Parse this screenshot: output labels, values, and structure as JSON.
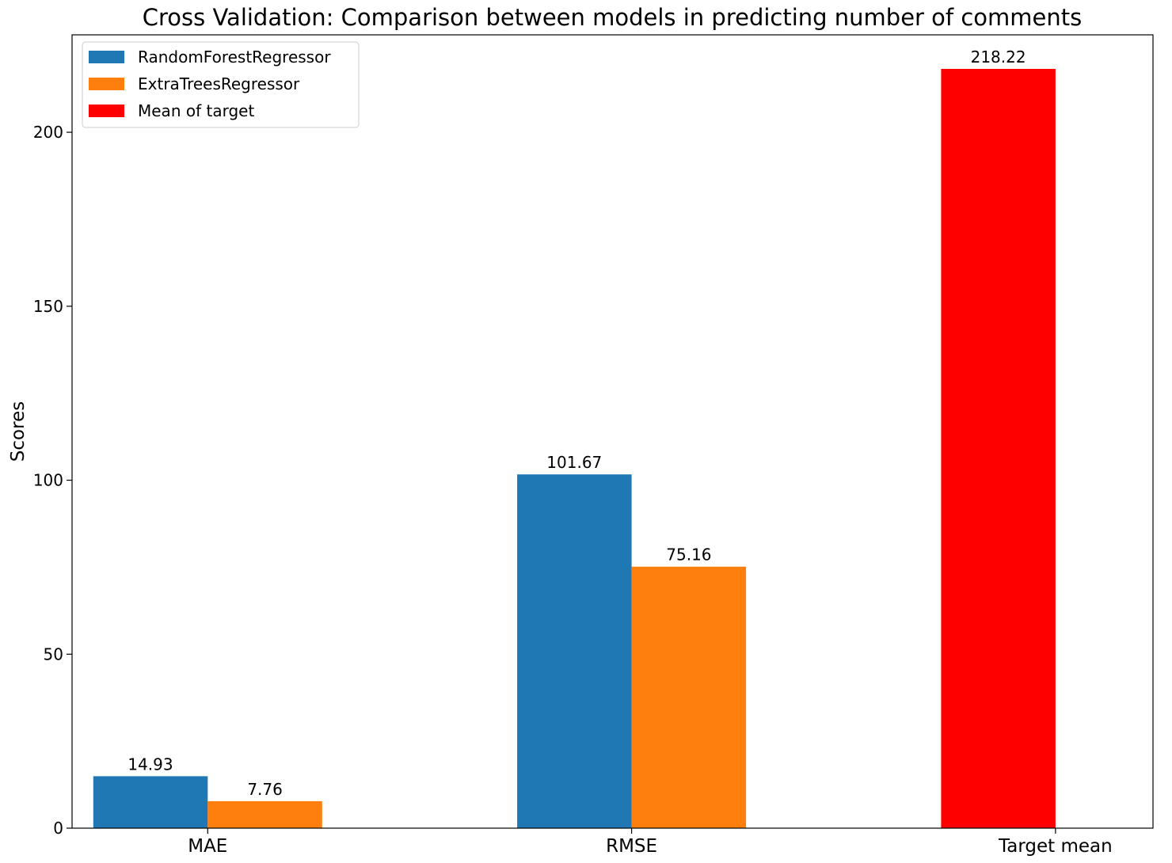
{
  "chart_data": {
    "type": "bar",
    "title": "Cross Validation: Comparison between models in predicting number of comments",
    "xlabel": "",
    "ylabel": "Scores",
    "categories": [
      "MAE",
      "RMSE",
      "Target mean"
    ],
    "ylim": [
      0,
      228
    ],
    "yticks": [
      0,
      50,
      100,
      150,
      200
    ],
    "ytick_labels": [
      "0",
      "50",
      "100",
      "150",
      "200"
    ],
    "grid": false,
    "legend_position": "top-left",
    "series": [
      {
        "name": "RandomForestRegressor",
        "color": "#1f77b4",
        "values": [
          14.93,
          101.67,
          null
        ],
        "labels": [
          "14.93",
          "101.67",
          ""
        ]
      },
      {
        "name": "ExtraTreesRegressor",
        "color": "#ff7f0e",
        "values": [
          7.76,
          75.16,
          null
        ],
        "labels": [
          "7.76",
          "75.16",
          ""
        ]
      },
      {
        "name": "Mean of target",
        "color": "#ff0000",
        "values": [
          null,
          null,
          218.22
        ],
        "labels": [
          "",
          "",
          "218.22"
        ]
      }
    ]
  }
}
